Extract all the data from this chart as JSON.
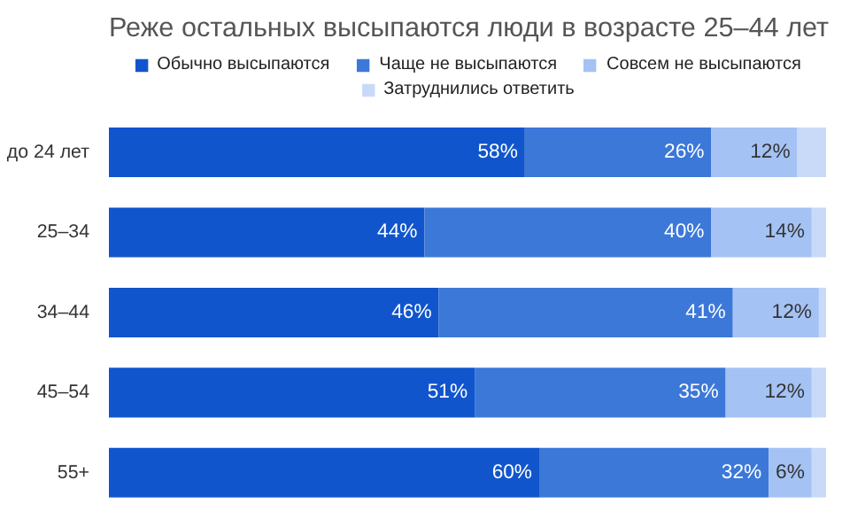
{
  "chart_data": {
    "type": "bar",
    "orientation": "horizontal",
    "stacked": true,
    "title": "Реже остальных высыпаются люди в возрасте 25–44 лет",
    "categories": [
      "до 24 лет",
      "25–34",
      "34–44",
      "45–54",
      "55+"
    ],
    "series": [
      {
        "name": "Обычно высыпаются",
        "color": "#1155cc",
        "values": [
          58,
          44,
          46,
          51,
          60
        ],
        "value_labels": [
          "58%",
          "44%",
          "46%",
          "51%",
          "60%"
        ]
      },
      {
        "name": "Чаще не высыпаются",
        "color": "#3c78d8",
        "values": [
          26,
          40,
          41,
          35,
          32
        ],
        "value_labels": [
          "26%",
          "40%",
          "41%",
          "35%",
          "32%"
        ]
      },
      {
        "name": "Совсем не высыпаются",
        "color": "#a4c2f4",
        "values": [
          12,
          14,
          12,
          12,
          6
        ],
        "value_labels": [
          "12%",
          "14%",
          "12%",
          "12%",
          "6%"
        ]
      },
      {
        "name": "Затруднились ответить",
        "color": "#c9daf8",
        "values": [
          4,
          2,
          1,
          2,
          2
        ],
        "value_labels": [
          null,
          null,
          null,
          null,
          null
        ]
      }
    ],
    "xlim": [
      0,
      100
    ],
    "tick_labels": "y",
    "grid": false,
    "legend": "top"
  }
}
